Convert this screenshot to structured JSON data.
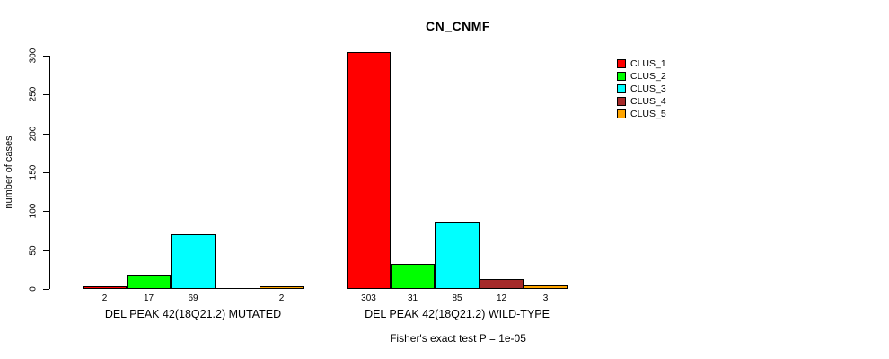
{
  "chart_data": {
    "type": "bar",
    "title": "CN_CNMF",
    "ylabel": "number of cases",
    "ylim": [
      0,
      300
    ],
    "yticks": [
      0,
      50,
      100,
      150,
      200,
      250,
      300
    ],
    "grid": false,
    "legend_position": "top-right-outside",
    "clusters": [
      {
        "name": "CLUS_1",
        "color": "#FF0000"
      },
      {
        "name": "CLUS_2",
        "color": "#00FF00"
      },
      {
        "name": "CLUS_3",
        "color": "#00FFFF"
      },
      {
        "name": "CLUS_4",
        "color": "#A52A2A"
      },
      {
        "name": "CLUS_5",
        "color": "#FFA500"
      }
    ],
    "groups": [
      {
        "label": "DEL PEAK 42(18Q21.2) MUTATED",
        "values": [
          2,
          17,
          69,
          0,
          2
        ],
        "bar_labels": [
          "2",
          "17",
          "69",
          "",
          "2"
        ]
      },
      {
        "label": "DEL PEAK 42(18Q21.2) WILD-TYPE",
        "values": [
          303,
          31,
          85,
          12,
          3
        ],
        "bar_labels": [
          "303",
          "31",
          "85",
          "12",
          "3"
        ]
      }
    ],
    "annotation": "Fisher's exact test P = 1e-05"
  }
}
